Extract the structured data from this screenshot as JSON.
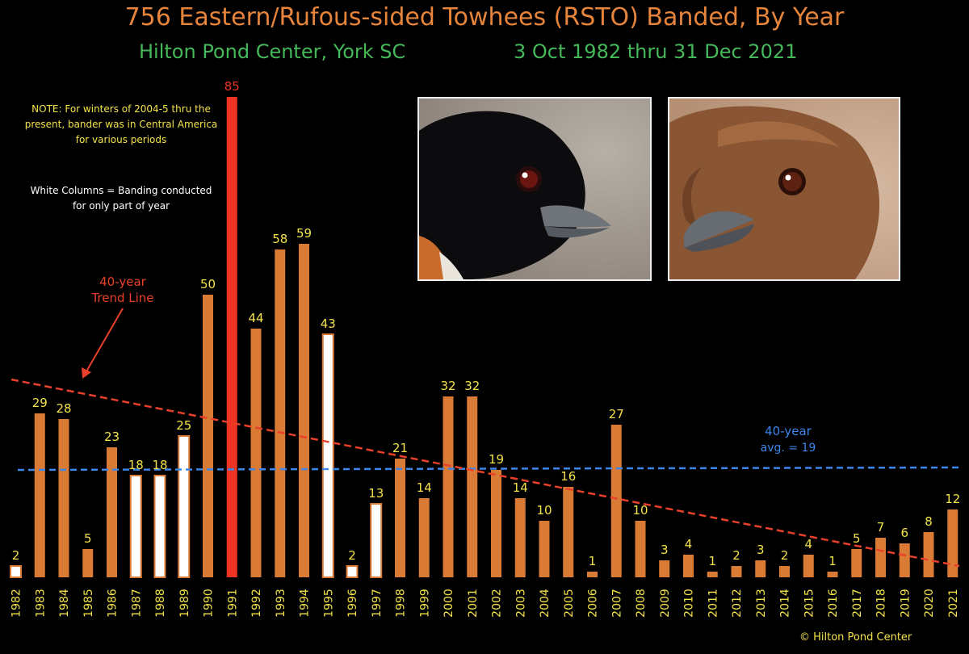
{
  "header": {
    "title": "756 Eastern/Rufous-sided Towhees (RSTO) Banded, By Year",
    "subtitle_left": "Hilton Pond Center, York SC",
    "subtitle_right": "3 Oct 1982 thru 31 Dec 2021"
  },
  "notes": {
    "note_text": "NOTE: For winters of 2004-5 thru the present, bander was in Central America for various periods",
    "legend_text": "White Columns = Banding conducted for only part of year"
  },
  "annotations": {
    "trend_label_1": "40-year",
    "trend_label_2": "Trend Line",
    "avg_label_1": "40-year",
    "avg_label_2": "avg. = 19"
  },
  "photos": {
    "left_icon": "male-towhee-head-photo",
    "right_icon": "female-towhee-head-photo"
  },
  "credit": "© Hilton Pond Center",
  "colors": {
    "bar_full_year": "#d97a35",
    "bar_partial_year": "#ffffff",
    "bar_highlight": "#ee3524",
    "value_label": "#f3e24a",
    "highlight_label": "#ee3524",
    "trend_line": "#e8402a",
    "avg_line": "#3d86ea",
    "year_label": "#f3e24a"
  },
  "chart_data": {
    "type": "bar",
    "title": "756 Eastern/Rufous-sided Towhees (RSTO) Banded, By Year",
    "xlabel": "",
    "ylabel": "",
    "ylim": [
      0,
      85
    ],
    "grid": false,
    "categories": [
      "1982",
      "1983",
      "1984",
      "1985",
      "1986",
      "1987",
      "1988",
      "1989",
      "1990",
      "1991",
      "1992",
      "1993",
      "1994",
      "1995",
      "1996",
      "1997",
      "1998",
      "1999",
      "2000",
      "2001",
      "2002",
      "2003",
      "2004",
      "2005",
      "2006",
      "2007",
      "2008",
      "2009",
      "2010",
      "2011",
      "2012",
      "2013",
      "2014",
      "2015",
      "2016",
      "2017",
      "2018",
      "2019",
      "2020",
      "2021"
    ],
    "values": [
      2,
      29,
      28,
      5,
      23,
      18,
      18,
      25,
      50,
      85,
      44,
      58,
      59,
      43,
      2,
      13,
      21,
      14,
      32,
      32,
      19,
      14,
      10,
      16,
      1,
      27,
      10,
      3,
      4,
      1,
      2,
      3,
      2,
      4,
      1,
      5,
      7,
      6,
      8,
      12
    ],
    "bar_kind": [
      "partial",
      "full",
      "full",
      "full",
      "full",
      "partial",
      "partial",
      "partial",
      "full",
      "highlight",
      "full",
      "full",
      "full",
      "partial",
      "partial",
      "partial",
      "full",
      "full",
      "full",
      "full",
      "full",
      "full",
      "full",
      "full",
      "full",
      "full",
      "full",
      "full",
      "full",
      "full",
      "full",
      "full",
      "full",
      "full",
      "full",
      "full",
      "full",
      "full",
      "full",
      "full"
    ],
    "average": 19,
    "trend_line": {
      "start": 35,
      "end": 2
    }
  }
}
